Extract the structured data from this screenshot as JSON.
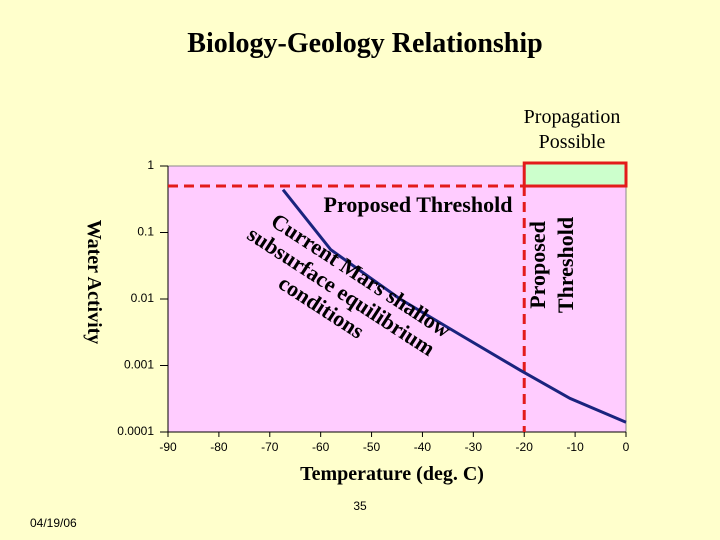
{
  "chart_data": {
    "type": "line",
    "title": "Biology-Geology Relationship",
    "x_label": "Temperature (deg. C)",
    "y_label": "Water Activity",
    "x": [
      -67.4,
      -58,
      -44.4,
      -32.6,
      -20.8,
      -11,
      0
    ],
    "values": [
      0.44,
      0.055,
      0.01,
      0.0029,
      0.00085,
      0.00032,
      0.00014
    ],
    "color": "#1a237e",
    "xlim": [
      -90,
      0
    ],
    "xticks": [
      -90,
      -80,
      -70,
      -60,
      -50,
      -40,
      -30,
      -20,
      -10,
      0
    ],
    "ylim": [
      0.0001,
      1
    ],
    "yticks": [
      0.0001,
      0.001,
      0.01,
      0.1,
      1
    ],
    "log_y": true,
    "threshold": {
      "water_activity": 0.5,
      "temperature": -20,
      "color": "#e31b1b"
    },
    "threshold_label": "Proposed Threshold",
    "threshold_label_vertical": [
      "Proposed",
      "Threshold"
    ],
    "region_label": [
      "Propagation",
      "Possible"
    ],
    "curve_label": [
      "Current Mars shallow",
      "subsurface equilibrium",
      "conditions"
    ]
  },
  "footer": {
    "page": "35",
    "date": "04/19/06"
  }
}
